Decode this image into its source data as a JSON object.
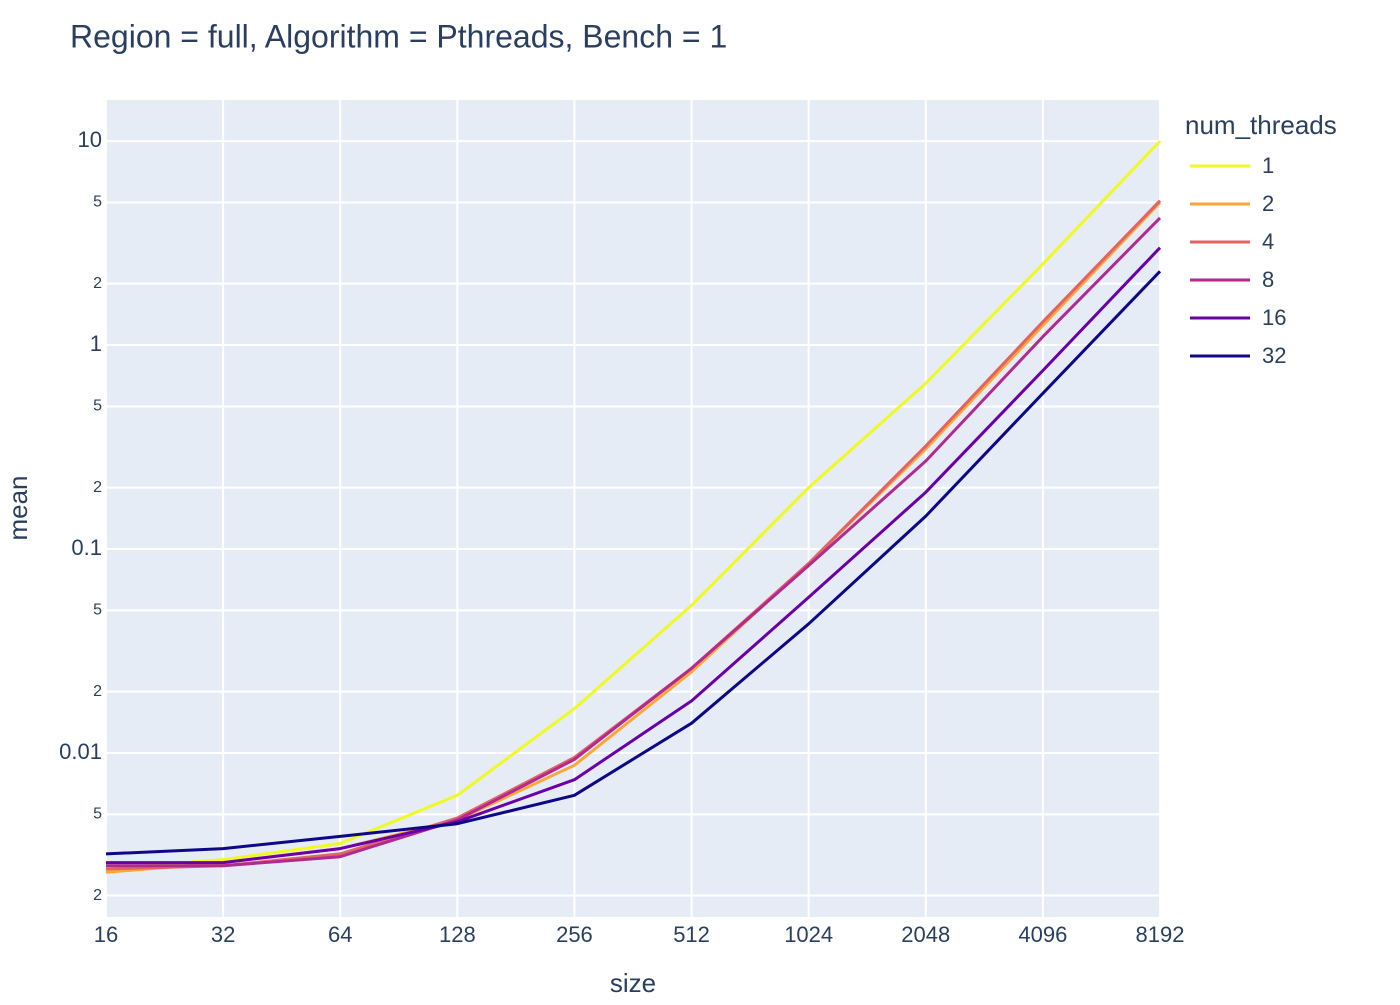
{
  "chart_data": {
    "type": "line",
    "title": "Region = full, Algorithm = Pthreads, Bench = 1",
    "x_label": "size",
    "y_label": "mean",
    "legend_title": "num_threads",
    "x": [
      16,
      32,
      64,
      128,
      256,
      512,
      1024,
      2048,
      4096,
      8192
    ],
    "xlim": [
      16,
      8192
    ],
    "xticks": [
      16,
      32,
      64,
      128,
      256,
      512,
      1024,
      2048,
      4096,
      8192
    ],
    "x_log": true,
    "ylim": [
      0.00157,
      15.9
    ],
    "y_log": true,
    "yticks": [
      10,
      {
        "value": 5,
        "label": "5"
      },
      {
        "value": 2,
        "label": "2"
      },
      1,
      {
        "value": 0.5,
        "label": "5"
      },
      {
        "value": 0.2,
        "label": "2"
      },
      0.1,
      {
        "value": 0.05,
        "label": "5"
      },
      {
        "value": 0.02,
        "label": "2"
      },
      0.01,
      {
        "value": 0.005,
        "label": "5"
      },
      {
        "value": 0.002,
        "label": "2"
      }
    ],
    "grid": true,
    "legend": "right",
    "series": [
      {
        "name": "1",
        "color": "#f0f921",
        "values": [
          0.0027,
          0.003,
          0.0036,
          0.0062,
          0.0165,
          0.053,
          0.2,
          0.65,
          2.5,
          10
        ]
      },
      {
        "name": "2",
        "color": "#fca636",
        "values": [
          0.0026,
          0.0029,
          0.0034,
          0.0047,
          0.0087,
          0.025,
          0.085,
          0.31,
          1.25,
          5
        ]
      },
      {
        "name": "4",
        "color": "#e16462",
        "values": [
          0.0027,
          0.0028,
          0.0032,
          0.0048,
          0.0095,
          0.026,
          0.085,
          0.32,
          1.3,
          5.1
        ]
      },
      {
        "name": "8",
        "color": "#b12a90",
        "values": [
          0.0028,
          0.0028,
          0.0031,
          0.0047,
          0.0093,
          0.026,
          0.083,
          0.27,
          1.1,
          4.2
        ]
      },
      {
        "name": "16",
        "color": "#6a00a8",
        "values": [
          0.0029,
          0.0029,
          0.0034,
          0.0046,
          0.0074,
          0.018,
          0.058,
          0.19,
          0.75,
          3.0
        ]
      },
      {
        "name": "32",
        "color": "#0d0887",
        "values": [
          0.0032,
          0.0034,
          0.0039,
          0.0045,
          0.0062,
          0.014,
          0.043,
          0.145,
          0.58,
          2.3
        ]
      }
    ]
  }
}
